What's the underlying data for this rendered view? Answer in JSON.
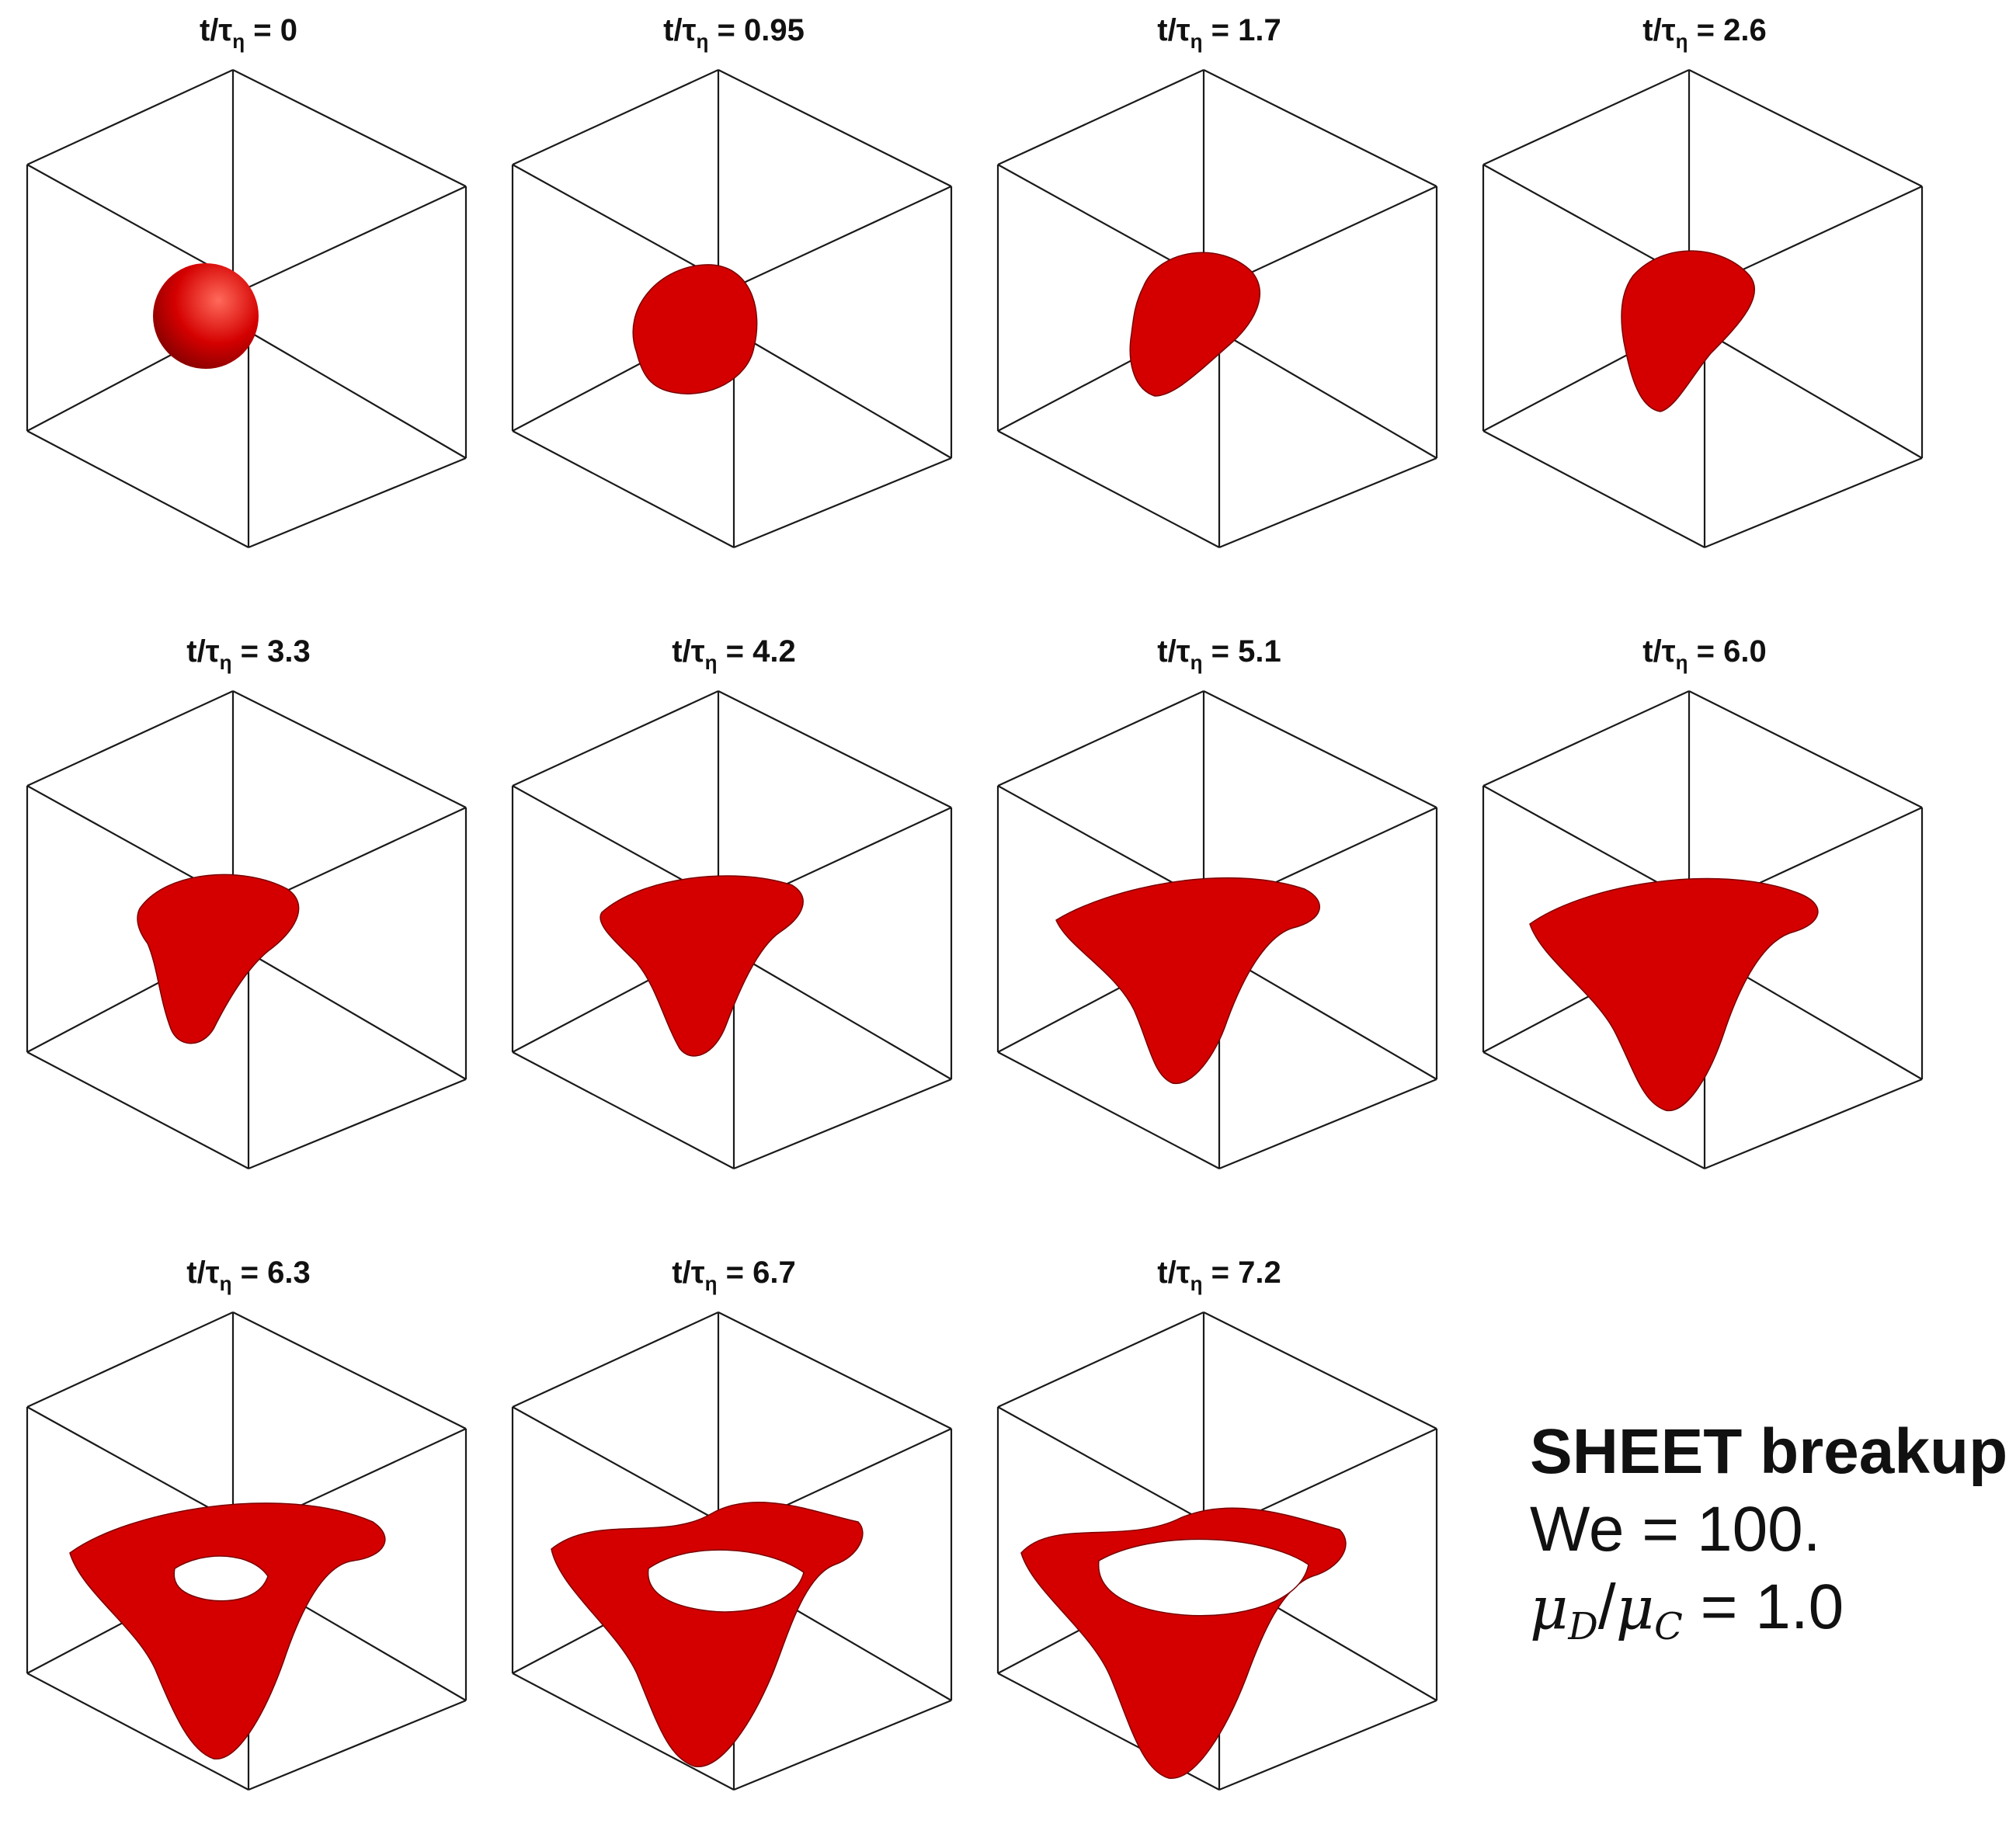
{
  "panels": [
    {
      "time_prefix": "t/τ",
      "time_sub": "η",
      "time_value": "= 0",
      "stage": 0
    },
    {
      "time_prefix": "t/τ",
      "time_sub": "η",
      "time_value": "= 0.95",
      "stage": 1
    },
    {
      "time_prefix": "t/τ",
      "time_sub": "η",
      "time_value": "= 1.7",
      "stage": 2
    },
    {
      "time_prefix": "t/τ",
      "time_sub": "η",
      "time_value": "= 2.6",
      "stage": 3
    },
    {
      "time_prefix": "t/τ",
      "time_sub": "η",
      "time_value": "= 3.3",
      "stage": 4
    },
    {
      "time_prefix": "t/τ",
      "time_sub": "η",
      "time_value": "= 4.2",
      "stage": 5
    },
    {
      "time_prefix": "t/τ",
      "time_sub": "η",
      "time_value": "= 5.1",
      "stage": 6
    },
    {
      "time_prefix": "t/τ",
      "time_sub": "η",
      "time_value": "= 6.0",
      "stage": 7
    },
    {
      "time_prefix": "t/τ",
      "time_sub": "η",
      "time_value": "= 6.3",
      "stage": 8
    },
    {
      "time_prefix": "t/τ",
      "time_sub": "η",
      "time_value": "= 6.7",
      "stage": 9
    },
    {
      "time_prefix": "t/τ",
      "time_sub": "η",
      "time_value": "= 7.2",
      "stage": 10
    }
  ],
  "legend": {
    "title": "SHEET breakup",
    "weber": "We = 100.",
    "viscosity_num": "μ",
    "viscosity_num_sub": "D",
    "viscosity_slash": "/",
    "viscosity_den": "μ",
    "viscosity_den_sub": "C",
    "viscosity_value": " = 1.0"
  },
  "colors": {
    "droplet": "#d40000",
    "droplet_dark": "#7a0000",
    "droplet_highlight": "#ff6a5a",
    "cube_edges": "#1a1a1a",
    "background": "#ffffff"
  }
}
